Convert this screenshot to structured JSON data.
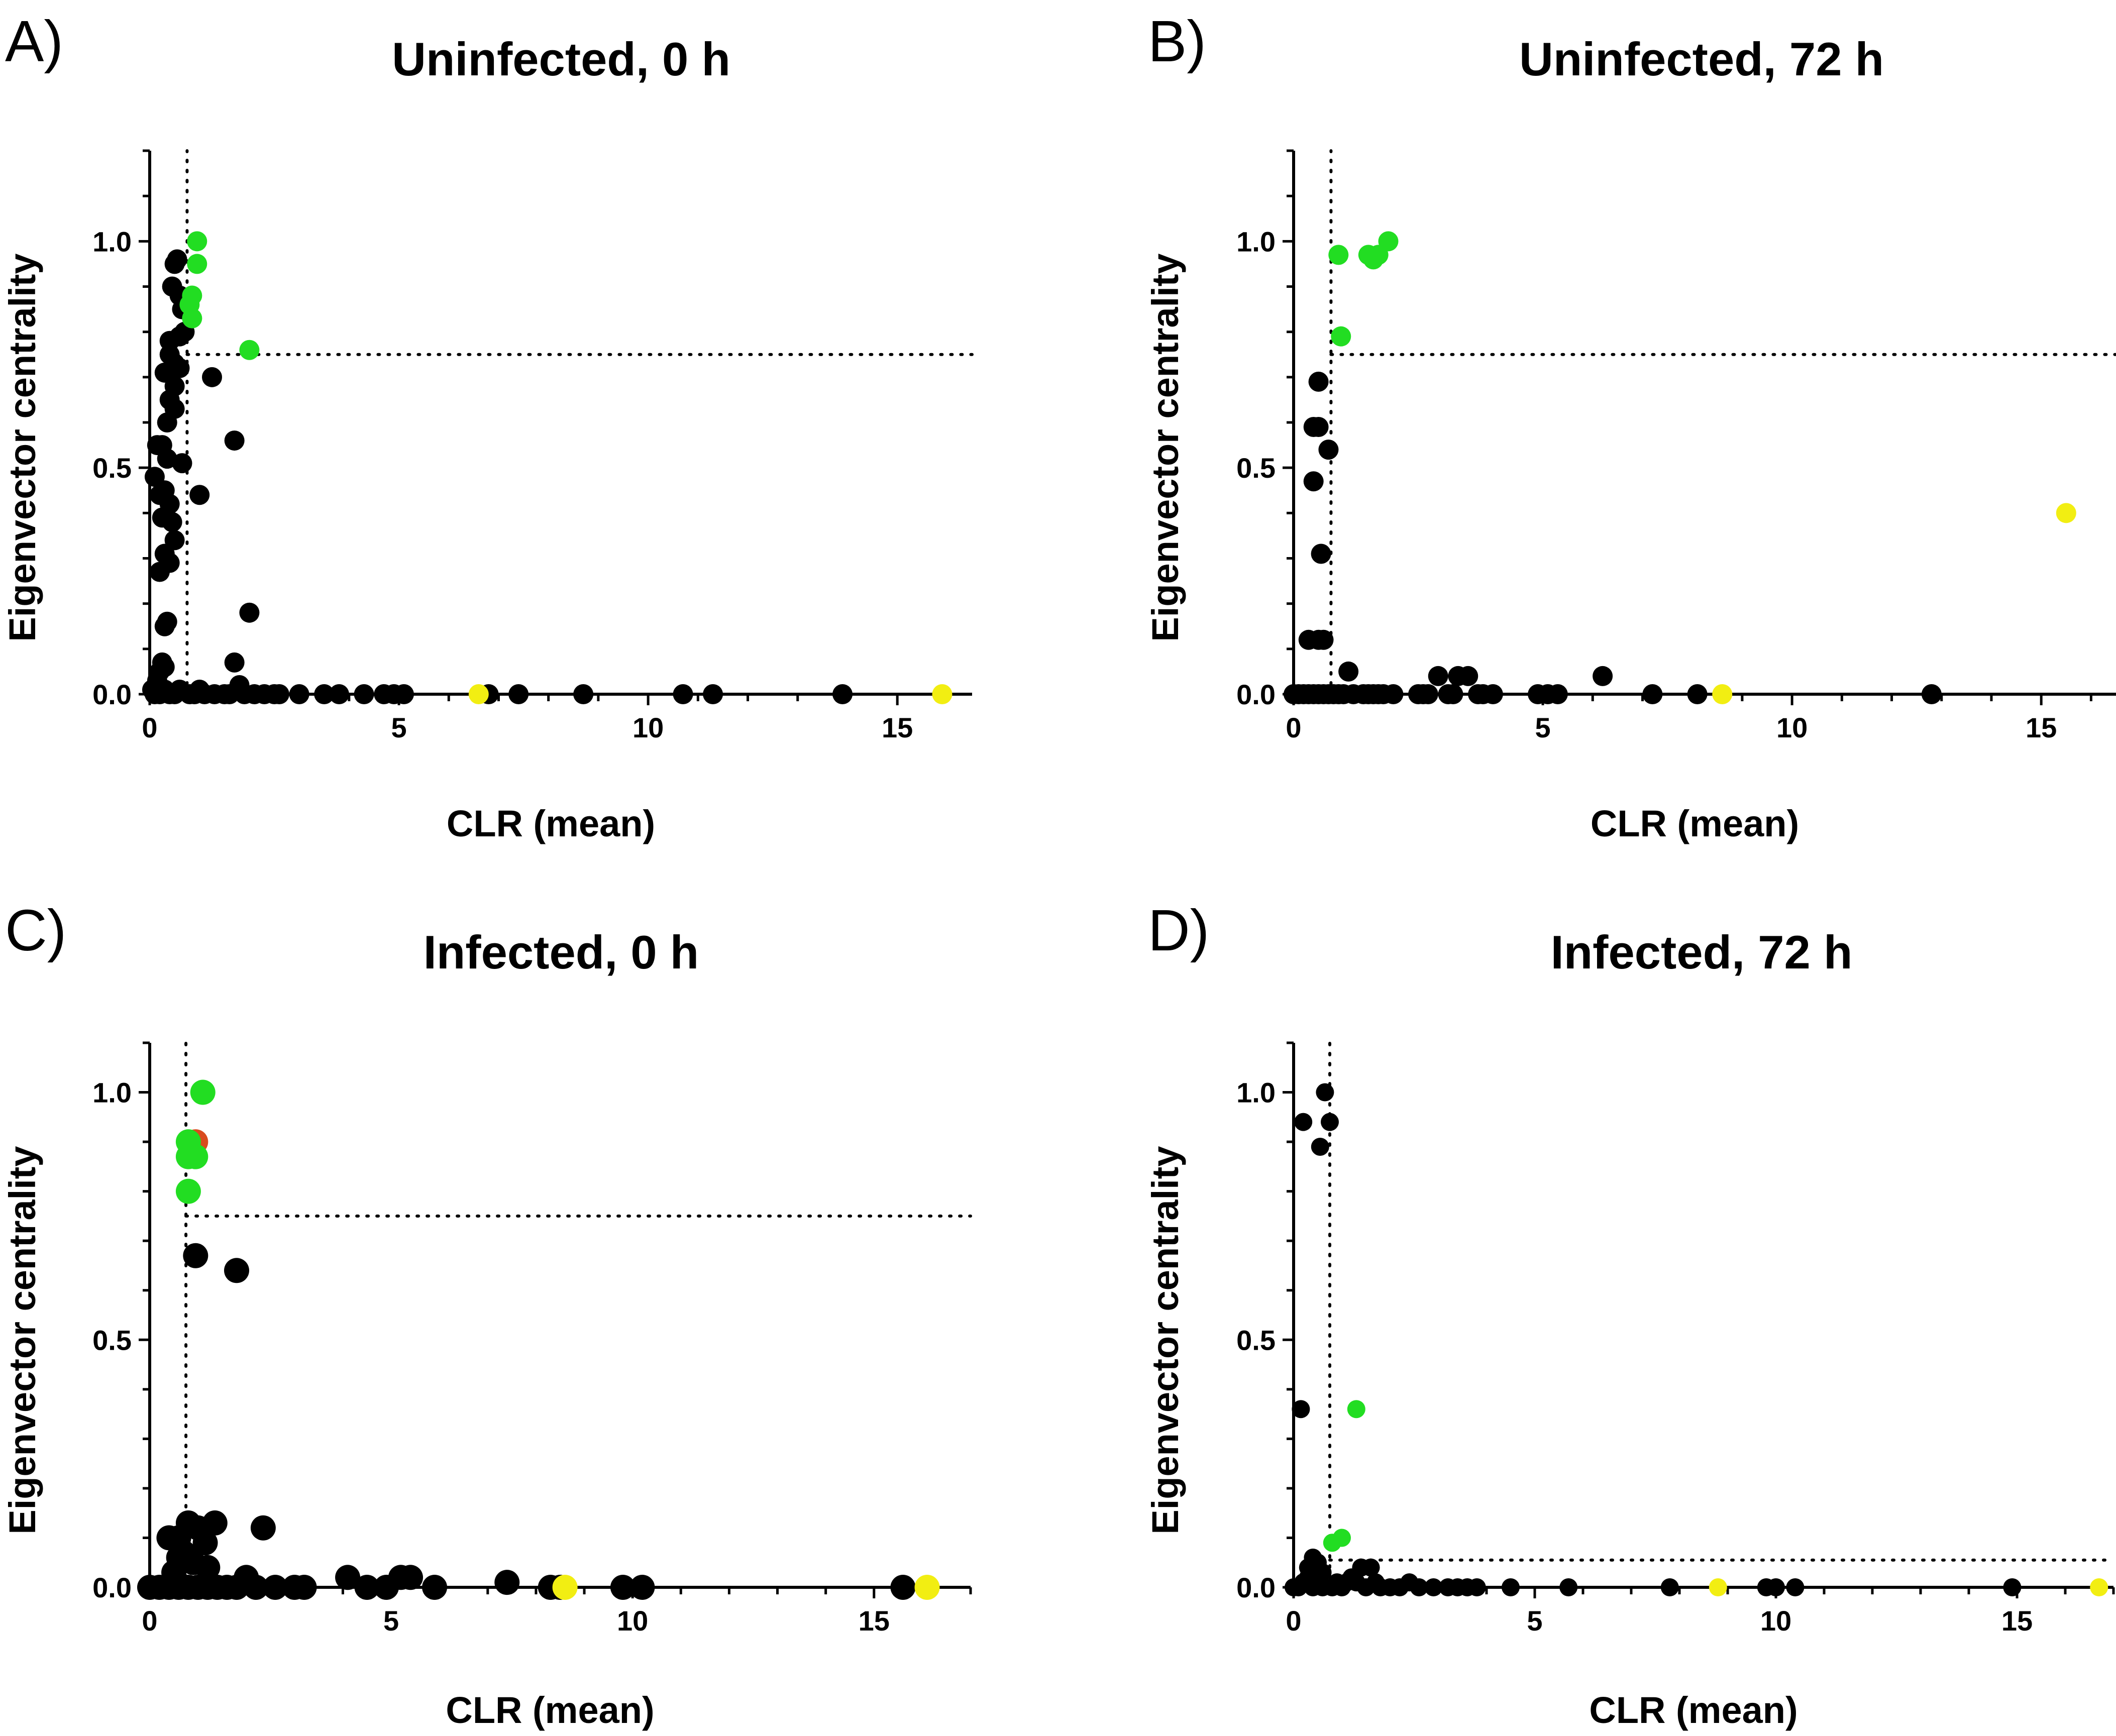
{
  "colors": {
    "black": "#000000",
    "green": "#22dd22",
    "yellow": "#f2ee12",
    "red": "#d94b1e"
  },
  "chart_data": [
    {
      "type": "scatter",
      "panel_label": "A)",
      "title": "Uninfected, 0 h",
      "xlabel": "CLR (mean)",
      "ylabel": "Eigenvector centrality",
      "xlim": [
        0,
        16.5
      ],
      "ylim": [
        0,
        1.2
      ],
      "xticks": [
        "0",
        "5",
        "10",
        "15"
      ],
      "yticks": [
        "0.0",
        "0.5",
        "1.0"
      ],
      "thresholds": {
        "x": 0.75,
        "y": 0.75
      },
      "series": [
        {
          "name": "black",
          "color": "black",
          "points": [
            [
              0.5,
              0.95
            ],
            [
              0.55,
              0.96
            ],
            [
              0.45,
              0.9
            ],
            [
              0.6,
              0.88
            ],
            [
              0.7,
              0.86
            ],
            [
              0.65,
              0.85
            ],
            [
              0.4,
              0.78
            ],
            [
              0.6,
              0.79
            ],
            [
              0.7,
              0.8
            ],
            [
              0.4,
              0.75
            ],
            [
              0.5,
              0.73
            ],
            [
              0.3,
              0.71
            ],
            [
              0.6,
              0.72
            ],
            [
              0.5,
              0.68
            ],
            [
              0.4,
              0.65
            ],
            [
              0.5,
              0.63
            ],
            [
              0.35,
              0.6
            ],
            [
              0.15,
              0.55
            ],
            [
              0.25,
              0.55
            ],
            [
              0.35,
              0.52
            ],
            [
              0.65,
              0.51
            ],
            [
              0.1,
              0.48
            ],
            [
              0.3,
              0.45
            ],
            [
              0.2,
              0.44
            ],
            [
              0.4,
              0.42
            ],
            [
              0.25,
              0.39
            ],
            [
              0.45,
              0.38
            ],
            [
              0.5,
              0.34
            ],
            [
              0.3,
              0.31
            ],
            [
              0.4,
              0.29
            ],
            [
              0.2,
              0.27
            ],
            [
              0.35,
              0.16
            ],
            [
              0.3,
              0.15
            ],
            [
              0.25,
              0.07
            ],
            [
              0.3,
              0.06
            ],
            [
              0.15,
              0.03
            ],
            [
              0.2,
              0.05
            ],
            [
              1.0,
              0.44
            ],
            [
              1.25,
              0.7
            ],
            [
              1.7,
              0.56
            ],
            [
              2.0,
              0.18
            ],
            [
              1.7,
              0.07
            ],
            [
              1.8,
              0.02
            ],
            [
              0.05,
              0.01
            ],
            [
              0.1,
              0.0
            ],
            [
              0.2,
              0.0
            ],
            [
              0.3,
              0.01
            ],
            [
              0.4,
              0.0
            ],
            [
              0.5,
              0.0
            ],
            [
              0.6,
              0.01
            ],
            [
              0.8,
              0.0
            ],
            [
              0.9,
              0.0
            ],
            [
              1.0,
              0.01
            ],
            [
              1.1,
              0.0
            ],
            [
              1.3,
              0.0
            ],
            [
              1.5,
              0.0
            ],
            [
              1.6,
              0.0
            ],
            [
              1.9,
              0.0
            ],
            [
              2.1,
              0.0
            ],
            [
              2.3,
              0.0
            ],
            [
              2.5,
              0.0
            ],
            [
              2.6,
              0.0
            ],
            [
              3.0,
              0.0
            ],
            [
              3.5,
              0.0
            ],
            [
              3.8,
              0.0
            ],
            [
              4.3,
              0.0
            ],
            [
              4.7,
              0.0
            ],
            [
              4.9,
              0.0
            ],
            [
              5.1,
              0.0
            ],
            [
              6.8,
              0.0
            ],
            [
              7.4,
              0.0
            ],
            [
              8.7,
              0.0
            ],
            [
              10.7,
              0.0
            ],
            [
              11.3,
              0.0
            ],
            [
              13.9,
              0.0
            ]
          ]
        },
        {
          "name": "green",
          "color": "green",
          "points": [
            [
              0.95,
              1.0
            ],
            [
              0.95,
              0.95
            ],
            [
              0.85,
              0.88
            ],
            [
              0.8,
              0.86
            ],
            [
              0.85,
              0.83
            ],
            [
              2.0,
              0.76
            ]
          ]
        },
        {
          "name": "yellow",
          "color": "yellow",
          "points": [
            [
              6.6,
              0.0
            ],
            [
              15.9,
              0.0
            ]
          ]
        }
      ]
    },
    {
      "type": "scatter",
      "panel_label": "B)",
      "title": "Uninfected, 72 h",
      "xlabel": "CLR (mean)",
      "ylabel": "Eigenvector centrality",
      "xlim": [
        0,
        16.5
      ],
      "ylim": [
        0,
        1.2
      ],
      "xticks": [
        "0",
        "5",
        "10",
        "15"
      ],
      "yticks": [
        "0.0",
        "0.5",
        "1.0"
      ],
      "thresholds": {
        "x": 0.75,
        "y": 0.75
      },
      "series": [
        {
          "name": "black",
          "color": "black",
          "points": [
            [
              0.5,
              0.69
            ],
            [
              0.4,
              0.59
            ],
            [
              0.5,
              0.59
            ],
            [
              0.7,
              0.54
            ],
            [
              0.4,
              0.47
            ],
            [
              0.55,
              0.31
            ],
            [
              0.3,
              0.12
            ],
            [
              0.5,
              0.12
            ],
            [
              0.6,
              0.12
            ],
            [
              1.1,
              0.05
            ],
            [
              2.9,
              0.04
            ],
            [
              3.3,
              0.04
            ],
            [
              3.5,
              0.04
            ],
            [
              6.2,
              0.04
            ],
            [
              0.0,
              0.0
            ],
            [
              0.1,
              0.0
            ],
            [
              0.2,
              0.0
            ],
            [
              0.3,
              0.0
            ],
            [
              0.4,
              0.0
            ],
            [
              0.5,
              0.0
            ],
            [
              0.6,
              0.0
            ],
            [
              0.7,
              0.0
            ],
            [
              0.8,
              0.0
            ],
            [
              0.9,
              0.0
            ],
            [
              1.0,
              0.0
            ],
            [
              1.2,
              0.0
            ],
            [
              1.4,
              0.0
            ],
            [
              1.5,
              0.0
            ],
            [
              1.6,
              0.0
            ],
            [
              1.7,
              0.0
            ],
            [
              1.8,
              0.0
            ],
            [
              2.0,
              0.0
            ],
            [
              2.5,
              0.0
            ],
            [
              2.6,
              0.0
            ],
            [
              2.7,
              0.0
            ],
            [
              3.1,
              0.0
            ],
            [
              3.2,
              0.0
            ],
            [
              3.7,
              0.0
            ],
            [
              3.8,
              0.0
            ],
            [
              4.0,
              0.0
            ],
            [
              4.9,
              0.0
            ],
            [
              5.1,
              0.0
            ],
            [
              5.3,
              0.0
            ],
            [
              7.2,
              0.0
            ],
            [
              8.1,
              0.0
            ],
            [
              12.8,
              0.0
            ]
          ]
        },
        {
          "name": "green",
          "color": "green",
          "points": [
            [
              0.9,
              0.97
            ],
            [
              1.5,
              0.97
            ],
            [
              1.6,
              0.96
            ],
            [
              1.7,
              0.97
            ],
            [
              1.9,
              1.0
            ],
            [
              0.95,
              0.79
            ]
          ]
        },
        {
          "name": "yellow",
          "color": "yellow",
          "points": [
            [
              15.5,
              0.4
            ],
            [
              8.6,
              0.0
            ]
          ]
        }
      ]
    },
    {
      "type": "scatter",
      "panel_label": "C)",
      "title": "Infected, 0 h",
      "xlabel": "CLR (mean)",
      "ylabel": "Eigenvector centrality",
      "xlim": [
        0,
        17
      ],
      "ylim": [
        0,
        1.1
      ],
      "xticks": [
        "0",
        "5",
        "10",
        "15"
      ],
      "yticks": [
        "0.0",
        "0.5",
        "1.0"
      ],
      "thresholds": {
        "x": 0.75,
        "y": 0.75
      },
      "series": [
        {
          "name": "black",
          "color": "black",
          "points": [
            [
              0.95,
              0.67
            ],
            [
              1.8,
              0.64
            ],
            [
              0.8,
              0.13
            ],
            [
              1.0,
              0.12
            ],
            [
              1.35,
              0.13
            ],
            [
              0.4,
              0.1
            ],
            [
              0.6,
              0.1
            ],
            [
              1.15,
              0.09
            ],
            [
              0.7,
              0.07
            ],
            [
              0.9,
              0.05
            ],
            [
              2.35,
              0.12
            ],
            [
              1.2,
              0.04
            ],
            [
              0.5,
              0.03
            ],
            [
              0.6,
              0.06
            ],
            [
              0.0,
              0.0
            ],
            [
              0.2,
              0.0
            ],
            [
              0.4,
              0.0
            ],
            [
              0.6,
              0.0
            ],
            [
              0.8,
              0.0
            ],
            [
              1.0,
              0.0
            ],
            [
              1.2,
              0.0
            ],
            [
              1.4,
              0.0
            ],
            [
              1.6,
              0.0
            ],
            [
              1.8,
              0.0
            ],
            [
              2.0,
              0.02
            ],
            [
              2.2,
              0.0
            ],
            [
              2.6,
              0.0
            ],
            [
              3.0,
              0.0
            ],
            [
              3.2,
              0.0
            ],
            [
              4.1,
              0.02
            ],
            [
              4.5,
              0.0
            ],
            [
              4.9,
              0.0
            ],
            [
              5.2,
              0.02
            ],
            [
              5.4,
              0.02
            ],
            [
              5.9,
              0.0
            ],
            [
              7.4,
              0.01
            ],
            [
              8.3,
              0.0
            ],
            [
              8.5,
              0.0
            ],
            [
              9.8,
              0.0
            ],
            [
              10.2,
              0.0
            ],
            [
              15.6,
              0.0
            ]
          ]
        },
        {
          "name": "red",
          "color": "red",
          "points": [
            [
              0.95,
              0.9
            ]
          ]
        },
        {
          "name": "green",
          "color": "green",
          "points": [
            [
              1.1,
              1.0
            ],
            [
              0.8,
              0.9
            ],
            [
              0.8,
              0.87
            ],
            [
              0.95,
              0.87
            ],
            [
              0.8,
              0.8
            ]
          ]
        },
        {
          "name": "yellow",
          "color": "yellow",
          "points": [
            [
              8.6,
              0.0
            ],
            [
              16.1,
              0.0
            ]
          ]
        }
      ]
    },
    {
      "type": "scatter",
      "panel_label": "D)",
      "title": "Infected, 72 h",
      "xlabel": "CLR (mean)",
      "ylabel": "Eigenvector centrality",
      "xlim": [
        0,
        17
      ],
      "ylim": [
        0,
        1.1
      ],
      "xticks": [
        "0",
        "5",
        "10",
        "15"
      ],
      "yticks": [
        "0.0",
        "0.5",
        "1.0"
      ],
      "thresholds": {
        "x": 0.75,
        "y": 0.055
      },
      "series": [
        {
          "name": "black",
          "color": "black",
          "points": [
            [
              0.65,
              1.0
            ],
            [
              0.2,
              0.94
            ],
            [
              0.75,
              0.94
            ],
            [
              0.55,
              0.89
            ],
            [
              0.15,
              0.36
            ],
            [
              0.4,
              0.06
            ],
            [
              0.5,
              0.05
            ],
            [
              0.3,
              0.04
            ],
            [
              0.6,
              0.03
            ],
            [
              1.4,
              0.04
            ],
            [
              1.6,
              0.04
            ],
            [
              0.0,
              0.0
            ],
            [
              0.1,
              0.0
            ],
            [
              0.2,
              0.01
            ],
            [
              0.3,
              0.02
            ],
            [
              0.4,
              0.0
            ],
            [
              0.5,
              0.01
            ],
            [
              0.6,
              0.0
            ],
            [
              0.8,
              0.0
            ],
            [
              0.9,
              0.01
            ],
            [
              1.0,
              0.0
            ],
            [
              1.1,
              0.01
            ],
            [
              1.2,
              0.02
            ],
            [
              1.3,
              0.01
            ],
            [
              1.5,
              0.0
            ],
            [
              1.7,
              0.01
            ],
            [
              1.8,
              0.0
            ],
            [
              2.0,
              0.0
            ],
            [
              2.2,
              0.0
            ],
            [
              2.4,
              0.01
            ],
            [
              2.6,
              0.0
            ],
            [
              2.9,
              0.0
            ],
            [
              3.2,
              0.0
            ],
            [
              3.4,
              0.0
            ],
            [
              3.6,
              0.0
            ],
            [
              3.8,
              0.0
            ],
            [
              4.5,
              0.0
            ],
            [
              5.7,
              0.0
            ],
            [
              7.8,
              0.0
            ],
            [
              9.8,
              0.0
            ],
            [
              10.0,
              0.0
            ],
            [
              10.4,
              0.0
            ],
            [
              14.9,
              0.0
            ]
          ]
        },
        {
          "name": "green",
          "color": "green",
          "points": [
            [
              1.3,
              0.36
            ],
            [
              1.0,
              0.1
            ],
            [
              0.8,
              0.09
            ]
          ]
        },
        {
          "name": "yellow",
          "color": "yellow",
          "points": [
            [
              16.7,
              0.0
            ],
            [
              8.8,
              0.0
            ]
          ]
        }
      ]
    }
  ]
}
